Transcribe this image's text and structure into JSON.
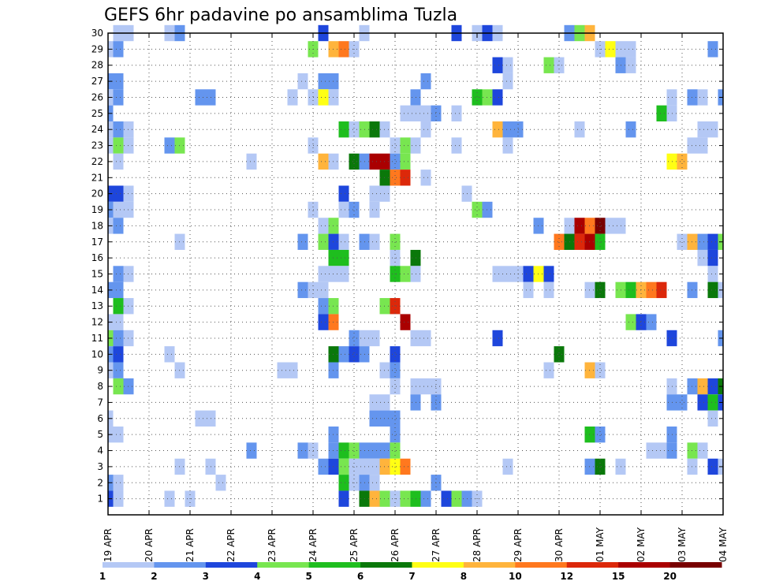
{
  "chart_data": {
    "type": "heatmap",
    "title": "GEFS 6hr padavine po ansamblima Tuzla",
    "xlabel": "",
    "ylabel": "",
    "x_tick_labels": [
      "19 APR",
      "20 APR",
      "21 APR",
      "22 APR",
      "23 APR",
      "24 APR",
      "25 APR",
      "26 APR",
      "27 APR",
      "28 APR",
      "29 APR",
      "30 APR",
      "01 MAY",
      "02 MAY",
      "03 MAY",
      "04 MAY"
    ],
    "y_tick_labels": [
      "1",
      "2",
      "3",
      "4",
      "5",
      "6",
      "7",
      "8",
      "9",
      "10",
      "11",
      "12",
      "13",
      "14",
      "15",
      "16",
      "17",
      "18",
      "19",
      "20",
      "21",
      "22",
      "23",
      "24",
      "25",
      "26",
      "27",
      "28",
      "29",
      "30"
    ],
    "x_range": [
      0,
      15
    ],
    "y_range": [
      0,
      30
    ],
    "grid": true,
    "colorbar": {
      "position": "bottom",
      "levels": [
        "1",
        "2",
        "3",
        "4",
        "5",
        "6",
        "7",
        "8",
        "10",
        "12",
        "15",
        "20"
      ],
      "colors": [
        "#b4c8f5",
        "#6495ee",
        "#1e46dc",
        "#78e650",
        "#1ebe1e",
        "#0a780a",
        "#ffff14",
        "#ffb43c",
        "#ff781e",
        "#dc280a",
        "#aa0000",
        "#780000"
      ]
    },
    "cells": [
      [
        0.25,
        30,
        0
      ],
      [
        0.5,
        30,
        0
      ],
      [
        1.5,
        30,
        0
      ],
      [
        1.75,
        30,
        1
      ],
      [
        5.25,
        30,
        2
      ],
      [
        6.25,
        30,
        0
      ],
      [
        8.5,
        30,
        2
      ],
      [
        9.0,
        30,
        0
      ],
      [
        9.25,
        30,
        2
      ],
      [
        9.5,
        30,
        0
      ],
      [
        11.25,
        30,
        1
      ],
      [
        11.5,
        30,
        3
      ],
      [
        11.75,
        30,
        7
      ],
      [
        0.0,
        29,
        0
      ],
      [
        0.25,
        29,
        1
      ],
      [
        5.0,
        29,
        3
      ],
      [
        5.5,
        29,
        7
      ],
      [
        5.75,
        29,
        8
      ],
      [
        6.0,
        29,
        0
      ],
      [
        12.0,
        29,
        0
      ],
      [
        12.25,
        29,
        6
      ],
      [
        12.5,
        29,
        0
      ],
      [
        12.75,
        29,
        0
      ],
      [
        14.75,
        29,
        1
      ],
      [
        9.5,
        28,
        2
      ],
      [
        9.75,
        28,
        0
      ],
      [
        10.75,
        28,
        3
      ],
      [
        11.0,
        28,
        0
      ],
      [
        12.5,
        28,
        1
      ],
      [
        12.75,
        28,
        0
      ],
      [
        0.0,
        27,
        1
      ],
      [
        0.25,
        27,
        1
      ],
      [
        4.75,
        27,
        0
      ],
      [
        5.25,
        27,
        1
      ],
      [
        5.5,
        27,
        1
      ],
      [
        7.75,
        27,
        1
      ],
      [
        9.75,
        27,
        0
      ],
      [
        0.0,
        26,
        0
      ],
      [
        0.25,
        26,
        1
      ],
      [
        2.25,
        26,
        1
      ],
      [
        2.5,
        26,
        1
      ],
      [
        4.5,
        26,
        0
      ],
      [
        5.0,
        26,
        0
      ],
      [
        5.25,
        26,
        6
      ],
      [
        5.5,
        26,
        0
      ],
      [
        7.5,
        26,
        1
      ],
      [
        9.0,
        26,
        4
      ],
      [
        9.25,
        26,
        3
      ],
      [
        9.5,
        26,
        2
      ],
      [
        13.75,
        26,
        0
      ],
      [
        14.25,
        26,
        1
      ],
      [
        14.5,
        26,
        0
      ],
      [
        15.0,
        26,
        1
      ],
      [
        0.0,
        25,
        1
      ],
      [
        7.25,
        25,
        0
      ],
      [
        7.5,
        25,
        0
      ],
      [
        7.75,
        25,
        0
      ],
      [
        8.0,
        25,
        1
      ],
      [
        8.5,
        25,
        0
      ],
      [
        13.5,
        25,
        4
      ],
      [
        13.75,
        25,
        0
      ],
      [
        0.0,
        24,
        0
      ],
      [
        0.25,
        24,
        1
      ],
      [
        0.5,
        24,
        0
      ],
      [
        5.75,
        24,
        4
      ],
      [
        6.0,
        24,
        0
      ],
      [
        6.25,
        24,
        3
      ],
      [
        6.5,
        24,
        5
      ],
      [
        6.75,
        24,
        0
      ],
      [
        7.75,
        24,
        0
      ],
      [
        9.5,
        24,
        7
      ],
      [
        9.75,
        24,
        1
      ],
      [
        10.0,
        24,
        1
      ],
      [
        11.5,
        24,
        0
      ],
      [
        12.75,
        24,
        1
      ],
      [
        14.5,
        24,
        0
      ],
      [
        14.75,
        24,
        0
      ],
      [
        0.0,
        23,
        0
      ],
      [
        0.25,
        23,
        3
      ],
      [
        0.5,
        23,
        0
      ],
      [
        1.5,
        23,
        1
      ],
      [
        1.75,
        23,
        3
      ],
      [
        5.0,
        23,
        0
      ],
      [
        7.0,
        23,
        0
      ],
      [
        7.25,
        23,
        3
      ],
      [
        7.5,
        23,
        0
      ],
      [
        8.5,
        23,
        0
      ],
      [
        9.75,
        23,
        0
      ],
      [
        14.25,
        23,
        0
      ],
      [
        14.5,
        23,
        0
      ],
      [
        0.25,
        22,
        0
      ],
      [
        3.5,
        22,
        0
      ],
      [
        5.25,
        22,
        7
      ],
      [
        5.5,
        22,
        0
      ],
      [
        6.0,
        22,
        5
      ],
      [
        6.25,
        22,
        1
      ],
      [
        6.5,
        22,
        10
      ],
      [
        6.75,
        22,
        10
      ],
      [
        7.0,
        22,
        1
      ],
      [
        7.25,
        22,
        3
      ],
      [
        13.75,
        22,
        6
      ],
      [
        14.0,
        22,
        7
      ],
      [
        6.75,
        21,
        5
      ],
      [
        7.0,
        21,
        8
      ],
      [
        7.25,
        21,
        9
      ],
      [
        7.75,
        21,
        0
      ],
      [
        0.0,
        20,
        2
      ],
      [
        0.25,
        20,
        2
      ],
      [
        0.5,
        20,
        0
      ],
      [
        5.75,
        20,
        2
      ],
      [
        6.5,
        20,
        0
      ],
      [
        6.75,
        20,
        0
      ],
      [
        8.75,
        20,
        0
      ],
      [
        0.0,
        19,
        1
      ],
      [
        0.25,
        19,
        0
      ],
      [
        0.5,
        19,
        0
      ],
      [
        5.0,
        19,
        0
      ],
      [
        5.75,
        19,
        0
      ],
      [
        6.0,
        19,
        1
      ],
      [
        6.5,
        19,
        0
      ],
      [
        9.0,
        19,
        3
      ],
      [
        9.25,
        19,
        1
      ],
      [
        0.0,
        18,
        0
      ],
      [
        0.25,
        18,
        1
      ],
      [
        5.25,
        18,
        0
      ],
      [
        5.5,
        18,
        3
      ],
      [
        10.5,
        18,
        1
      ],
      [
        11.25,
        18,
        0
      ],
      [
        11.5,
        18,
        10
      ],
      [
        11.75,
        18,
        8
      ],
      [
        12.0,
        18,
        11
      ],
      [
        12.25,
        18,
        0
      ],
      [
        12.5,
        18,
        0
      ],
      [
        1.75,
        17,
        0
      ],
      [
        4.75,
        17,
        1
      ],
      [
        5.25,
        17,
        3
      ],
      [
        5.5,
        17,
        2
      ],
      [
        5.75,
        17,
        0
      ],
      [
        6.25,
        17,
        1
      ],
      [
        6.5,
        17,
        0
      ],
      [
        7.0,
        17,
        3
      ],
      [
        11.0,
        17,
        8
      ],
      [
        11.25,
        17,
        5
      ],
      [
        11.5,
        17,
        9
      ],
      [
        11.75,
        17,
        10
      ],
      [
        12.0,
        17,
        4
      ],
      [
        14.0,
        17,
        0
      ],
      [
        14.25,
        17,
        7
      ],
      [
        14.5,
        17,
        1
      ],
      [
        14.75,
        17,
        2
      ],
      [
        15.0,
        17,
        3
      ],
      [
        5.5,
        16,
        4
      ],
      [
        5.75,
        16,
        4
      ],
      [
        7.0,
        16,
        0
      ],
      [
        7.5,
        16,
        5
      ],
      [
        14.5,
        16,
        0
      ],
      [
        14.75,
        16,
        2
      ],
      [
        0.25,
        15,
        1
      ],
      [
        0.5,
        15,
        0
      ],
      [
        5.25,
        15,
        0
      ],
      [
        5.5,
        15,
        0
      ],
      [
        5.75,
        15,
        0
      ],
      [
        7.0,
        15,
        4
      ],
      [
        7.25,
        15,
        3
      ],
      [
        7.5,
        15,
        0
      ],
      [
        9.5,
        15,
        0
      ],
      [
        9.75,
        15,
        0
      ],
      [
        10.0,
        15,
        0
      ],
      [
        10.25,
        15,
        2
      ],
      [
        10.5,
        15,
        6
      ],
      [
        10.75,
        15,
        2
      ],
      [
        14.75,
        15,
        0
      ],
      [
        0.0,
        14,
        1
      ],
      [
        0.25,
        14,
        1
      ],
      [
        4.75,
        14,
        1
      ],
      [
        5.0,
        14,
        0
      ],
      [
        5.25,
        14,
        0
      ],
      [
        10.25,
        14,
        0
      ],
      [
        10.75,
        14,
        0
      ],
      [
        11.75,
        14,
        0
      ],
      [
        12.0,
        14,
        5
      ],
      [
        12.5,
        14,
        3
      ],
      [
        12.75,
        14,
        4
      ],
      [
        13.0,
        14,
        7
      ],
      [
        13.25,
        14,
        8
      ],
      [
        13.5,
        14,
        9
      ],
      [
        14.25,
        14,
        1
      ],
      [
        14.75,
        14,
        5
      ],
      [
        15.0,
        14,
        0
      ],
      [
        0.25,
        13,
        4
      ],
      [
        0.5,
        13,
        0
      ],
      [
        5.25,
        13,
        1
      ],
      [
        5.5,
        13,
        3
      ],
      [
        6.75,
        13,
        3
      ],
      [
        7.0,
        13,
        9
      ],
      [
        0.0,
        12,
        0
      ],
      [
        0.25,
        12,
        0
      ],
      [
        5.25,
        12,
        2
      ],
      [
        5.5,
        12,
        8
      ],
      [
        7.25,
        12,
        10
      ],
      [
        12.75,
        12,
        3
      ],
      [
        13.0,
        12,
        2
      ],
      [
        13.25,
        12,
        1
      ],
      [
        0.0,
        11,
        3
      ],
      [
        0.25,
        11,
        1
      ],
      [
        0.5,
        11,
        0
      ],
      [
        6.0,
        11,
        1
      ],
      [
        6.25,
        11,
        0
      ],
      [
        6.5,
        11,
        0
      ],
      [
        7.5,
        11,
        0
      ],
      [
        7.75,
        11,
        0
      ],
      [
        9.5,
        11,
        2
      ],
      [
        13.75,
        11,
        2
      ],
      [
        15.0,
        11,
        1
      ],
      [
        0.0,
        10,
        1
      ],
      [
        0.25,
        10,
        2
      ],
      [
        1.5,
        10,
        0
      ],
      [
        5.5,
        10,
        5
      ],
      [
        5.75,
        10,
        1
      ],
      [
        6.0,
        10,
        2
      ],
      [
        6.25,
        10,
        1
      ],
      [
        7.0,
        10,
        2
      ],
      [
        11.0,
        10,
        5
      ],
      [
        0.0,
        9,
        0
      ],
      [
        0.25,
        9,
        1
      ],
      [
        1.75,
        9,
        0
      ],
      [
        4.25,
        9,
        0
      ],
      [
        4.5,
        9,
        0
      ],
      [
        5.5,
        9,
        1
      ],
      [
        6.75,
        9,
        0
      ],
      [
        7.0,
        9,
        1
      ],
      [
        10.75,
        9,
        0
      ],
      [
        11.75,
        9,
        7
      ],
      [
        12.0,
        9,
        0
      ],
      [
        0.25,
        8,
        3
      ],
      [
        0.5,
        8,
        1
      ],
      [
        7.0,
        8,
        0
      ],
      [
        7.5,
        8,
        0
      ],
      [
        7.75,
        8,
        0
      ],
      [
        8.0,
        8,
        0
      ],
      [
        13.75,
        8,
        0
      ],
      [
        14.25,
        8,
        1
      ],
      [
        14.5,
        8,
        7
      ],
      [
        14.75,
        8,
        2
      ],
      [
        15.0,
        8,
        5
      ],
      [
        6.5,
        7,
        0
      ],
      [
        6.75,
        7,
        0
      ],
      [
        7.5,
        7,
        1
      ],
      [
        8.0,
        7,
        1
      ],
      [
        13.75,
        7,
        1
      ],
      [
        14.0,
        7,
        1
      ],
      [
        14.5,
        7,
        2
      ],
      [
        14.75,
        7,
        4
      ],
      [
        15.0,
        7,
        2
      ],
      [
        0.0,
        6,
        0
      ],
      [
        2.25,
        6,
        0
      ],
      [
        2.5,
        6,
        0
      ],
      [
        6.5,
        6,
        1
      ],
      [
        6.75,
        6,
        1
      ],
      [
        7.0,
        6,
        1
      ],
      [
        14.75,
        6,
        0
      ],
      [
        0.0,
        5,
        0
      ],
      [
        0.25,
        5,
        0
      ],
      [
        5.5,
        5,
        1
      ],
      [
        7.0,
        5,
        1
      ],
      [
        11.75,
        5,
        4
      ],
      [
        12.0,
        5,
        1
      ],
      [
        13.75,
        5,
        1
      ],
      [
        3.5,
        4,
        1
      ],
      [
        4.75,
        4,
        1
      ],
      [
        5.0,
        4,
        0
      ],
      [
        5.5,
        4,
        1
      ],
      [
        5.75,
        4,
        4
      ],
      [
        6.0,
        4,
        3
      ],
      [
        6.25,
        4,
        1
      ],
      [
        6.5,
        4,
        1
      ],
      [
        6.75,
        4,
        1
      ],
      [
        7.0,
        4,
        3
      ],
      [
        13.25,
        4,
        0
      ],
      [
        13.5,
        4,
        0
      ],
      [
        13.75,
        4,
        1
      ],
      [
        14.25,
        4,
        3
      ],
      [
        14.5,
        4,
        0
      ],
      [
        1.75,
        3,
        0
      ],
      [
        2.5,
        3,
        0
      ],
      [
        5.25,
        3,
        1
      ],
      [
        5.5,
        3,
        2
      ],
      [
        5.75,
        3,
        3
      ],
      [
        6.0,
        3,
        0
      ],
      [
        6.25,
        3,
        0
      ],
      [
        6.5,
        3,
        0
      ],
      [
        6.75,
        3,
        7
      ],
      [
        7.0,
        3,
        6
      ],
      [
        7.25,
        3,
        8
      ],
      [
        9.75,
        3,
        0
      ],
      [
        11.75,
        3,
        1
      ],
      [
        12.0,
        3,
        5
      ],
      [
        12.5,
        3,
        0
      ],
      [
        14.25,
        3,
        0
      ],
      [
        14.75,
        3,
        2
      ],
      [
        15.0,
        3,
        0
      ],
      [
        0.0,
        2,
        1
      ],
      [
        0.25,
        2,
        0
      ],
      [
        2.75,
        2,
        0
      ],
      [
        5.75,
        2,
        4
      ],
      [
        6.0,
        2,
        0
      ],
      [
        6.25,
        2,
        1
      ],
      [
        6.5,
        2,
        0
      ],
      [
        8.0,
        2,
        1
      ],
      [
        0.0,
        1,
        2
      ],
      [
        0.25,
        1,
        0
      ],
      [
        1.5,
        1,
        0
      ],
      [
        2.0,
        1,
        0
      ],
      [
        5.75,
        1,
        2
      ],
      [
        6.25,
        1,
        5
      ],
      [
        6.5,
        1,
        7
      ],
      [
        6.75,
        1,
        3
      ],
      [
        7.0,
        1,
        0
      ],
      [
        7.25,
        1,
        3
      ],
      [
        7.5,
        1,
        4
      ],
      [
        7.75,
        1,
        1
      ],
      [
        8.25,
        1,
        2
      ],
      [
        8.5,
        1,
        3
      ],
      [
        8.75,
        1,
        1
      ],
      [
        9.0,
        1,
        0
      ]
    ]
  }
}
